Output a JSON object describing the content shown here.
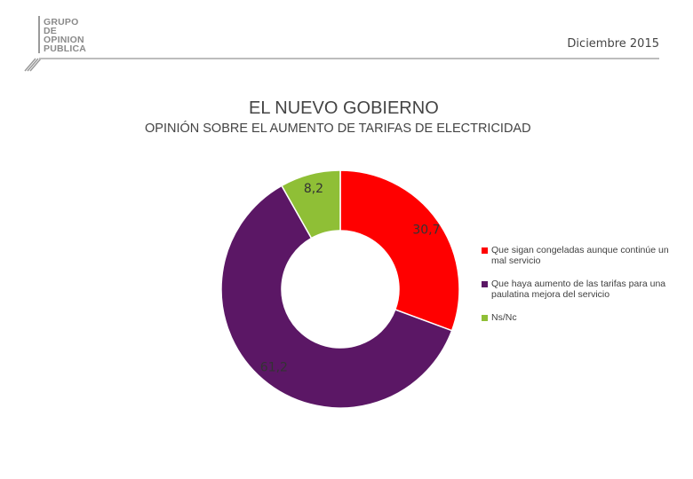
{
  "header": {
    "logo_lines": [
      "GRUPO",
      "DE",
      "OPINION",
      "PUBLICA"
    ],
    "date": "Diciembre 2015"
  },
  "chart_data": {
    "type": "pie",
    "variant": "donut",
    "title": "EL NUEVO GOBIERNO",
    "subtitle": "OPINIÓN SOBRE EL AUMENTO DE TARIFAS DE ELECTRICIDAD",
    "categories": [
      "Que sigan congeladas aunque continúe un mal servicio",
      "Que haya aumento de las tarifas para una paulatina mejora del servicio",
      "Ns/Nc"
    ],
    "values": [
      30.7,
      61.2,
      8.2
    ],
    "labels": [
      "30,7",
      "61,2",
      "8,2"
    ],
    "colors": [
      "#ff0000",
      "#5b1765",
      "#8fbf36"
    ],
    "legend_position": "right"
  }
}
